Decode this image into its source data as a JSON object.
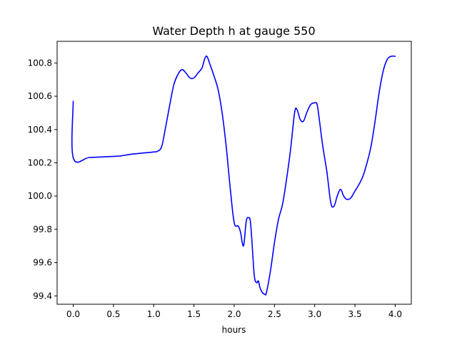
{
  "chart_data": {
    "type": "line",
    "title": "Water Depth h at gauge 550",
    "xlabel": "hours",
    "ylabel": "",
    "xlim": [
      -0.2,
      4.2
    ],
    "ylim": [
      99.35,
      100.93
    ],
    "grid": false,
    "xticks": [
      0.0,
      0.5,
      1.0,
      1.5,
      2.0,
      2.5,
      3.0,
      3.5,
      4.0
    ],
    "xtick_labels": [
      "0.0",
      "0.5",
      "1.0",
      "1.5",
      "2.0",
      "2.5",
      "3.0",
      "3.5",
      "4.0"
    ],
    "yticks": [
      99.4,
      99.6,
      99.8,
      100.0,
      100.2,
      100.4,
      100.6,
      100.8
    ],
    "ytick_labels": [
      "99.4",
      "99.6",
      "99.8",
      "100.0",
      "100.2",
      "100.4",
      "100.6",
      "100.8"
    ],
    "series": [
      {
        "color": "#0000ff",
        "x": [
          0.0,
          0.0,
          0.2,
          0.4,
          0.55,
          0.6,
          0.7,
          0.85,
          1.0,
          1.05,
          1.1,
          1.15,
          1.2,
          1.25,
          1.3,
          1.35,
          1.4,
          1.45,
          1.5,
          1.55,
          1.6,
          1.63,
          1.66,
          1.7,
          1.75,
          1.8,
          1.85,
          1.9,
          1.95,
          2.0,
          2.05,
          2.08,
          2.1,
          2.12,
          2.15,
          2.18,
          2.2,
          2.22,
          2.25,
          2.28,
          2.3,
          2.32,
          2.35,
          2.38,
          2.4,
          2.45,
          2.5,
          2.55,
          2.6,
          2.65,
          2.7,
          2.75,
          2.78,
          2.82,
          2.86,
          2.9,
          2.95,
          3.0,
          3.03,
          3.06,
          3.1,
          3.15,
          3.2,
          3.24,
          3.28,
          3.32,
          3.36,
          3.4,
          3.45,
          3.5,
          3.55,
          3.6,
          3.65,
          3.7,
          3.75,
          3.8,
          3.85,
          3.9,
          3.95,
          4.0
        ],
        "y": [
          100.57,
          100.23,
          100.232,
          100.236,
          100.24,
          100.242,
          100.25,
          100.258,
          100.265,
          100.27,
          100.3,
          100.42,
          100.55,
          100.67,
          100.73,
          100.76,
          100.74,
          100.71,
          100.71,
          100.74,
          100.77,
          100.82,
          100.84,
          100.79,
          100.72,
          100.64,
          100.5,
          100.3,
          100.05,
          99.84,
          99.82,
          99.78,
          99.72,
          99.71,
          99.85,
          99.87,
          99.85,
          99.73,
          99.52,
          99.48,
          99.49,
          99.45,
          99.42,
          99.41,
          99.42,
          99.55,
          99.72,
          99.86,
          99.95,
          100.1,
          100.28,
          100.5,
          100.52,
          100.46,
          100.45,
          100.5,
          100.55,
          100.56,
          100.55,
          100.45,
          100.3,
          100.15,
          99.96,
          99.94,
          100.0,
          100.04,
          100.0,
          99.98,
          99.99,
          100.03,
          100.07,
          100.12,
          100.2,
          100.3,
          100.45,
          100.62,
          100.75,
          100.82,
          100.84,
          100.84
        ]
      }
    ]
  }
}
